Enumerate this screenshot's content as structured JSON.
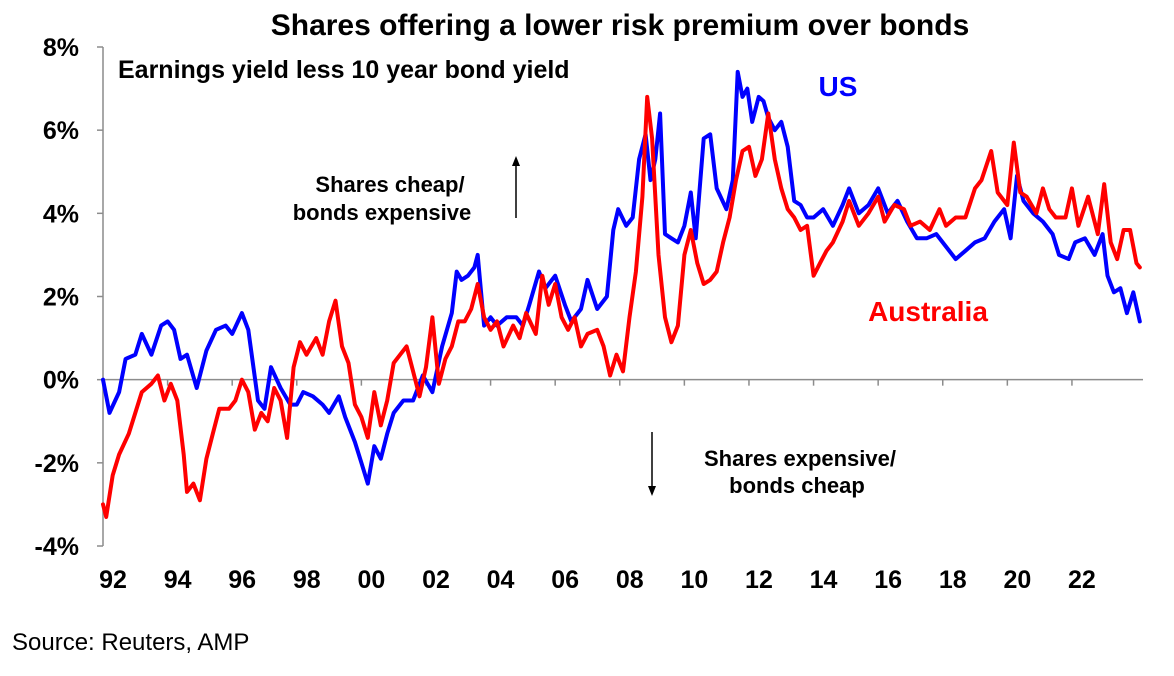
{
  "source": "Source: Reuters, AMP",
  "chart_data": {
    "type": "line",
    "title": "Shares offering a lower risk premium over bonds",
    "subtitle": "Earnings yield less 10 year bond yield",
    "ylim": [
      -4,
      8
    ],
    "y_ticks": [
      -4,
      -2,
      0,
      2,
      4,
      6,
      8
    ],
    "y_tick_labels": [
      "-4%",
      "-2%",
      "0%",
      "2%",
      "4%",
      "6%",
      "8%"
    ],
    "xlim": [
      1992,
      2024.2
    ],
    "x_ticks": [
      1992,
      1994,
      1996,
      1998,
      2000,
      2002,
      2004,
      2006,
      2008,
      2010,
      2012,
      2014,
      2016,
      2018,
      2020,
      2022
    ],
    "x_tick_labels": [
      "92",
      "94",
      "96",
      "98",
      "00",
      "02",
      "04",
      "06",
      "08",
      "10",
      "12",
      "14",
      "16",
      "18",
      "20",
      "22"
    ],
    "grid": false,
    "annotations": {
      "up_line1": "Shares cheap/",
      "up_line2": "bonds expensive",
      "down_line1": "Shares expensive/",
      "down_line2": "bonds cheap"
    },
    "series": [
      {
        "name": "US",
        "color": "#0000FF",
        "points": [
          [
            1992.0,
            0.0
          ],
          [
            1992.2,
            -0.8
          ],
          [
            1992.5,
            -0.3
          ],
          [
            1992.7,
            0.5
          ],
          [
            1993.0,
            0.6
          ],
          [
            1993.2,
            1.1
          ],
          [
            1993.5,
            0.6
          ],
          [
            1993.8,
            1.3
          ],
          [
            1994.0,
            1.4
          ],
          [
            1994.2,
            1.2
          ],
          [
            1994.4,
            0.5
          ],
          [
            1994.6,
            0.6
          ],
          [
            1994.9,
            -0.2
          ],
          [
            1995.2,
            0.7
          ],
          [
            1995.5,
            1.2
          ],
          [
            1995.8,
            1.3
          ],
          [
            1996.0,
            1.1
          ],
          [
            1996.3,
            1.6
          ],
          [
            1996.5,
            1.2
          ],
          [
            1996.8,
            -0.5
          ],
          [
            1997.0,
            -0.7
          ],
          [
            1997.2,
            0.3
          ],
          [
            1997.5,
            -0.2
          ],
          [
            1997.8,
            -0.6
          ],
          [
            1998.0,
            -0.6
          ],
          [
            1998.2,
            -0.3
          ],
          [
            1998.5,
            -0.4
          ],
          [
            1998.8,
            -0.6
          ],
          [
            1999.0,
            -0.8
          ],
          [
            1999.3,
            -0.4
          ],
          [
            1999.5,
            -0.9
          ],
          [
            1999.8,
            -1.5
          ],
          [
            2000.0,
            -2.0
          ],
          [
            2000.2,
            -2.5
          ],
          [
            2000.4,
            -1.6
          ],
          [
            2000.6,
            -1.9
          ],
          [
            2000.8,
            -1.3
          ],
          [
            2001.0,
            -0.8
          ],
          [
            2001.3,
            -0.5
          ],
          [
            2001.6,
            -0.5
          ],
          [
            2001.9,
            0.1
          ],
          [
            2002.2,
            -0.3
          ],
          [
            2002.5,
            0.8
          ],
          [
            2002.8,
            1.6
          ],
          [
            2002.95,
            2.6
          ],
          [
            2003.1,
            2.4
          ],
          [
            2003.3,
            2.5
          ],
          [
            2003.5,
            2.7
          ],
          [
            2003.6,
            3.0
          ],
          [
            2003.8,
            1.3
          ],
          [
            2004.0,
            1.5
          ],
          [
            2004.2,
            1.3
          ],
          [
            2004.5,
            1.5
          ],
          [
            2004.8,
            1.5
          ],
          [
            2005.0,
            1.3
          ],
          [
            2005.2,
            1.8
          ],
          [
            2005.5,
            2.6
          ],
          [
            2005.7,
            2.2
          ],
          [
            2006.0,
            2.5
          ],
          [
            2006.3,
            1.8
          ],
          [
            2006.5,
            1.4
          ],
          [
            2006.8,
            1.7
          ],
          [
            2007.0,
            2.4
          ],
          [
            2007.3,
            1.7
          ],
          [
            2007.6,
            2.0
          ],
          [
            2007.8,
            3.6
          ],
          [
            2007.95,
            4.1
          ],
          [
            2008.2,
            3.7
          ],
          [
            2008.4,
            3.9
          ],
          [
            2008.6,
            5.3
          ],
          [
            2008.8,
            5.9
          ],
          [
            2008.95,
            4.8
          ],
          [
            2009.1,
            5.3
          ],
          [
            2009.25,
            6.4
          ],
          [
            2009.4,
            3.5
          ],
          [
            2009.6,
            3.4
          ],
          [
            2009.8,
            3.3
          ],
          [
            2010.0,
            3.7
          ],
          [
            2010.2,
            4.5
          ],
          [
            2010.35,
            3.4
          ],
          [
            2010.6,
            5.8
          ],
          [
            2010.8,
            5.9
          ],
          [
            2011.0,
            4.6
          ],
          [
            2011.3,
            4.1
          ],
          [
            2011.5,
            4.8
          ],
          [
            2011.65,
            7.4
          ],
          [
            2011.8,
            6.8
          ],
          [
            2011.95,
            7.0
          ],
          [
            2012.1,
            6.2
          ],
          [
            2012.3,
            6.8
          ],
          [
            2012.45,
            6.7
          ],
          [
            2012.6,
            6.3
          ],
          [
            2012.8,
            6.0
          ],
          [
            2013.0,
            6.2
          ],
          [
            2013.2,
            5.6
          ],
          [
            2013.4,
            4.3
          ],
          [
            2013.6,
            4.2
          ],
          [
            2013.8,
            3.9
          ],
          [
            2014.0,
            3.9
          ],
          [
            2014.3,
            4.1
          ],
          [
            2014.6,
            3.7
          ],
          [
            2014.9,
            4.2
          ],
          [
            2015.1,
            4.6
          ],
          [
            2015.4,
            4.0
          ],
          [
            2015.7,
            4.2
          ],
          [
            2016.0,
            4.6
          ],
          [
            2016.3,
            4.0
          ],
          [
            2016.6,
            4.3
          ],
          [
            2016.9,
            3.8
          ],
          [
            2017.2,
            3.4
          ],
          [
            2017.5,
            3.4
          ],
          [
            2017.8,
            3.5
          ],
          [
            2018.1,
            3.2
          ],
          [
            2018.4,
            2.9
          ],
          [
            2018.7,
            3.1
          ],
          [
            2019.0,
            3.3
          ],
          [
            2019.3,
            3.4
          ],
          [
            2019.6,
            3.8
          ],
          [
            2019.9,
            4.1
          ],
          [
            2020.1,
            3.4
          ],
          [
            2020.3,
            4.9
          ],
          [
            2020.5,
            4.3
          ],
          [
            2020.8,
            4.0
          ],
          [
            2021.1,
            3.8
          ],
          [
            2021.4,
            3.5
          ],
          [
            2021.6,
            3.0
          ],
          [
            2021.9,
            2.9
          ],
          [
            2022.1,
            3.3
          ],
          [
            2022.4,
            3.4
          ],
          [
            2022.7,
            3.0
          ],
          [
            2022.95,
            3.5
          ],
          [
            2023.1,
            2.5
          ],
          [
            2023.3,
            2.1
          ],
          [
            2023.5,
            2.2
          ],
          [
            2023.7,
            1.6
          ],
          [
            2023.9,
            2.1
          ],
          [
            2024.1,
            1.4
          ]
        ]
      },
      {
        "name": "Australia",
        "color": "#FF0000",
        "points": [
          [
            1992.0,
            -3.0
          ],
          [
            1992.1,
            -3.3
          ],
          [
            1992.3,
            -2.3
          ],
          [
            1992.5,
            -1.8
          ],
          [
            1992.8,
            -1.3
          ],
          [
            1993.0,
            -0.8
          ],
          [
            1993.2,
            -0.3
          ],
          [
            1993.5,
            -0.1
          ],
          [
            1993.7,
            0.1
          ],
          [
            1993.9,
            -0.5
          ],
          [
            1994.1,
            -0.1
          ],
          [
            1994.3,
            -0.5
          ],
          [
            1994.5,
            -1.8
          ],
          [
            1994.6,
            -2.7
          ],
          [
            1994.8,
            -2.5
          ],
          [
            1995.0,
            -2.9
          ],
          [
            1995.2,
            -1.9
          ],
          [
            1995.4,
            -1.3
          ],
          [
            1995.6,
            -0.7
          ],
          [
            1995.9,
            -0.7
          ],
          [
            1996.1,
            -0.5
          ],
          [
            1996.3,
            0.0
          ],
          [
            1996.5,
            -0.3
          ],
          [
            1996.7,
            -1.2
          ],
          [
            1996.9,
            -0.8
          ],
          [
            1997.1,
            -1.0
          ],
          [
            1997.3,
            -0.2
          ],
          [
            1997.5,
            -0.5
          ],
          [
            1997.7,
            -1.4
          ],
          [
            1997.9,
            0.3
          ],
          [
            1998.1,
            0.9
          ],
          [
            1998.3,
            0.6
          ],
          [
            1998.6,
            1.0
          ],
          [
            1998.8,
            0.6
          ],
          [
            1999.0,
            1.4
          ],
          [
            1999.2,
            1.9
          ],
          [
            1999.4,
            0.8
          ],
          [
            1999.6,
            0.4
          ],
          [
            1999.8,
            -0.6
          ],
          [
            2000.0,
            -0.9
          ],
          [
            2000.2,
            -1.4
          ],
          [
            2000.4,
            -0.3
          ],
          [
            2000.6,
            -1.1
          ],
          [
            2000.8,
            -0.5
          ],
          [
            2001.0,
            0.4
          ],
          [
            2001.2,
            0.6
          ],
          [
            2001.4,
            0.8
          ],
          [
            2001.6,
            0.2
          ],
          [
            2001.8,
            -0.4
          ],
          [
            2002.0,
            0.3
          ],
          [
            2002.2,
            1.5
          ],
          [
            2002.4,
            -0.1
          ],
          [
            2002.6,
            0.5
          ],
          [
            2002.8,
            0.8
          ],
          [
            2003.0,
            1.4
          ],
          [
            2003.2,
            1.4
          ],
          [
            2003.4,
            1.7
          ],
          [
            2003.6,
            2.3
          ],
          [
            2003.8,
            1.5
          ],
          [
            2004.0,
            1.2
          ],
          [
            2004.2,
            1.4
          ],
          [
            2004.4,
            0.8
          ],
          [
            2004.7,
            1.3
          ],
          [
            2004.9,
            1.0
          ],
          [
            2005.1,
            1.6
          ],
          [
            2005.4,
            1.1
          ],
          [
            2005.6,
            2.5
          ],
          [
            2005.8,
            1.8
          ],
          [
            2006.0,
            2.3
          ],
          [
            2006.2,
            1.5
          ],
          [
            2006.4,
            1.2
          ],
          [
            2006.6,
            1.5
          ],
          [
            2006.8,
            0.8
          ],
          [
            2007.0,
            1.1
          ],
          [
            2007.3,
            1.2
          ],
          [
            2007.5,
            0.8
          ],
          [
            2007.7,
            0.1
          ],
          [
            2007.9,
            0.6
          ],
          [
            2008.1,
            0.2
          ],
          [
            2008.3,
            1.5
          ],
          [
            2008.5,
            2.6
          ],
          [
            2008.7,
            4.4
          ],
          [
            2008.85,
            6.8
          ],
          [
            2009.0,
            5.8
          ],
          [
            2009.2,
            3.0
          ],
          [
            2009.4,
            1.5
          ],
          [
            2009.6,
            0.9
          ],
          [
            2009.8,
            1.3
          ],
          [
            2010.0,
            3.0
          ],
          [
            2010.2,
            3.6
          ],
          [
            2010.4,
            2.8
          ],
          [
            2010.6,
            2.3
          ],
          [
            2010.8,
            2.4
          ],
          [
            2011.0,
            2.6
          ],
          [
            2011.2,
            3.3
          ],
          [
            2011.4,
            3.9
          ],
          [
            2011.6,
            4.8
          ],
          [
            2011.8,
            5.5
          ],
          [
            2012.0,
            5.6
          ],
          [
            2012.2,
            4.9
          ],
          [
            2012.4,
            5.3
          ],
          [
            2012.6,
            6.4
          ],
          [
            2012.8,
            5.3
          ],
          [
            2013.0,
            4.6
          ],
          [
            2013.2,
            4.1
          ],
          [
            2013.4,
            3.9
          ],
          [
            2013.6,
            3.6
          ],
          [
            2013.8,
            3.7
          ],
          [
            2014.0,
            2.5
          ],
          [
            2014.2,
            2.8
          ],
          [
            2014.4,
            3.1
          ],
          [
            2014.6,
            3.3
          ],
          [
            2014.9,
            3.8
          ],
          [
            2015.1,
            4.3
          ],
          [
            2015.4,
            3.7
          ],
          [
            2015.7,
            4.0
          ],
          [
            2016.0,
            4.4
          ],
          [
            2016.2,
            3.8
          ],
          [
            2016.5,
            4.2
          ],
          [
            2016.8,
            4.1
          ],
          [
            2017.0,
            3.7
          ],
          [
            2017.3,
            3.8
          ],
          [
            2017.6,
            3.6
          ],
          [
            2017.9,
            4.1
          ],
          [
            2018.1,
            3.7
          ],
          [
            2018.4,
            3.9
          ],
          [
            2018.7,
            3.9
          ],
          [
            2019.0,
            4.6
          ],
          [
            2019.2,
            4.8
          ],
          [
            2019.5,
            5.5
          ],
          [
            2019.7,
            4.5
          ],
          [
            2020.0,
            4.2
          ],
          [
            2020.2,
            5.7
          ],
          [
            2020.4,
            4.5
          ],
          [
            2020.6,
            4.4
          ],
          [
            2020.9,
            4.0
          ],
          [
            2021.1,
            4.6
          ],
          [
            2021.3,
            4.1
          ],
          [
            2021.5,
            3.9
          ],
          [
            2021.8,
            3.9
          ],
          [
            2022.0,
            4.6
          ],
          [
            2022.2,
            3.7
          ],
          [
            2022.5,
            4.4
          ],
          [
            2022.8,
            3.5
          ],
          [
            2023.0,
            4.7
          ],
          [
            2023.2,
            3.3
          ],
          [
            2023.4,
            2.9
          ],
          [
            2023.6,
            3.6
          ],
          [
            2023.8,
            3.6
          ],
          [
            2024.0,
            2.8
          ],
          [
            2024.1,
            2.7
          ]
        ]
      }
    ]
  }
}
